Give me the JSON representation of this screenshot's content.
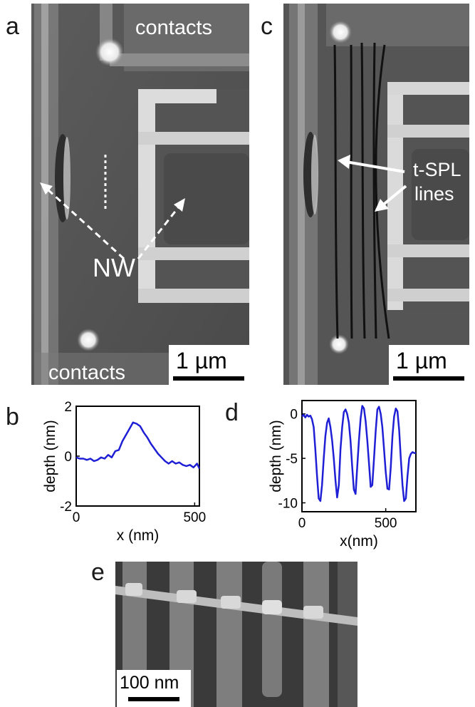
{
  "panels": {
    "a": {
      "label": "a",
      "contacts_top": "contacts",
      "contacts_bottom": "contacts",
      "nw_label": "NW",
      "scale": "1 µm"
    },
    "c": {
      "label": "c",
      "spl_line1": "t-SPL",
      "spl_line2": "lines",
      "scale": "1 µm"
    },
    "b": {
      "label": "b"
    },
    "d": {
      "label": "d"
    },
    "e": {
      "label": "e",
      "scale": "100 nm"
    }
  },
  "chart_data": [
    {
      "id": "b",
      "type": "line",
      "xlabel": "x (nm)",
      "ylabel": "depth (nm)",
      "xlim": [
        0,
        520
      ],
      "ylim": [
        -2,
        2
      ],
      "xticks": [
        0,
        500
      ],
      "yticks": [
        -2,
        0,
        2
      ],
      "color": "#1f1fd6",
      "x": [
        0,
        15,
        30,
        45,
        60,
        75,
        90,
        105,
        120,
        135,
        150,
        165,
        180,
        195,
        210,
        225,
        240,
        255,
        270,
        285,
        300,
        315,
        330,
        345,
        360,
        375,
        390,
        405,
        420,
        435,
        450,
        465,
        480,
        495,
        510,
        520
      ],
      "y": [
        -0.05,
        -0.1,
        -0.1,
        -0.15,
        -0.1,
        -0.2,
        -0.15,
        -0.05,
        -0.1,
        0.05,
        -0.05,
        0.2,
        0.25,
        0.6,
        0.85,
        1.1,
        1.35,
        1.3,
        1.2,
        0.95,
        0.75,
        0.5,
        0.3,
        0.1,
        -0.05,
        -0.2,
        -0.3,
        -0.2,
        -0.3,
        -0.25,
        -0.35,
        -0.4,
        -0.35,
        -0.45,
        -0.3,
        -0.5
      ]
    },
    {
      "id": "d",
      "type": "line",
      "xlabel": "x(nm)",
      "ylabel": "depth (nm)",
      "xlim": [
        0,
        680
      ],
      "ylim": [
        -11,
        1.5
      ],
      "xticks": [
        0,
        500
      ],
      "yticks": [
        -10,
        -5,
        0
      ],
      "color": "#1f1fd6",
      "x": [
        0,
        10,
        20,
        30,
        40,
        50,
        60,
        70,
        80,
        90,
        100,
        110,
        120,
        130,
        140,
        150,
        160,
        170,
        180,
        190,
        200,
        210,
        220,
        230,
        240,
        250,
        260,
        270,
        280,
        290,
        300,
        310,
        320,
        330,
        340,
        350,
        360,
        370,
        380,
        390,
        400,
        410,
        420,
        430,
        440,
        450,
        460,
        470,
        480,
        490,
        500,
        510,
        520,
        530,
        540,
        550,
        560,
        570,
        580,
        590,
        600,
        610,
        620,
        630,
        640,
        650,
        660,
        670,
        680
      ],
      "y": [
        -0.3,
        -0.1,
        -0.4,
        -0.1,
        -0.3,
        -0.2,
        -0.6,
        -1.5,
        -4,
        -7,
        -9.5,
        -9.8,
        -8,
        -5,
        -2.5,
        -1,
        -0.5,
        -1.5,
        -3,
        -5,
        -7.5,
        -9.4,
        -8,
        -4,
        -1.5,
        0.2,
        0.5,
        0,
        -1,
        -3,
        -6,
        -8.5,
        -9,
        -6,
        -3,
        -0.5,
        0.9,
        0.6,
        -0.8,
        -3,
        -5.5,
        -8.2,
        -8,
        -5,
        -2,
        0.5,
        0.8,
        0,
        -1.5,
        -4,
        -6.5,
        -8.4,
        -8.5,
        -6,
        -2.5,
        -0.3,
        0.6,
        0.3,
        -1.8,
        -5,
        -8,
        -9.8,
        -9.5,
        -7,
        -5,
        -4.5,
        -4.3,
        -4.4,
        -4.4
      ]
    }
  ]
}
